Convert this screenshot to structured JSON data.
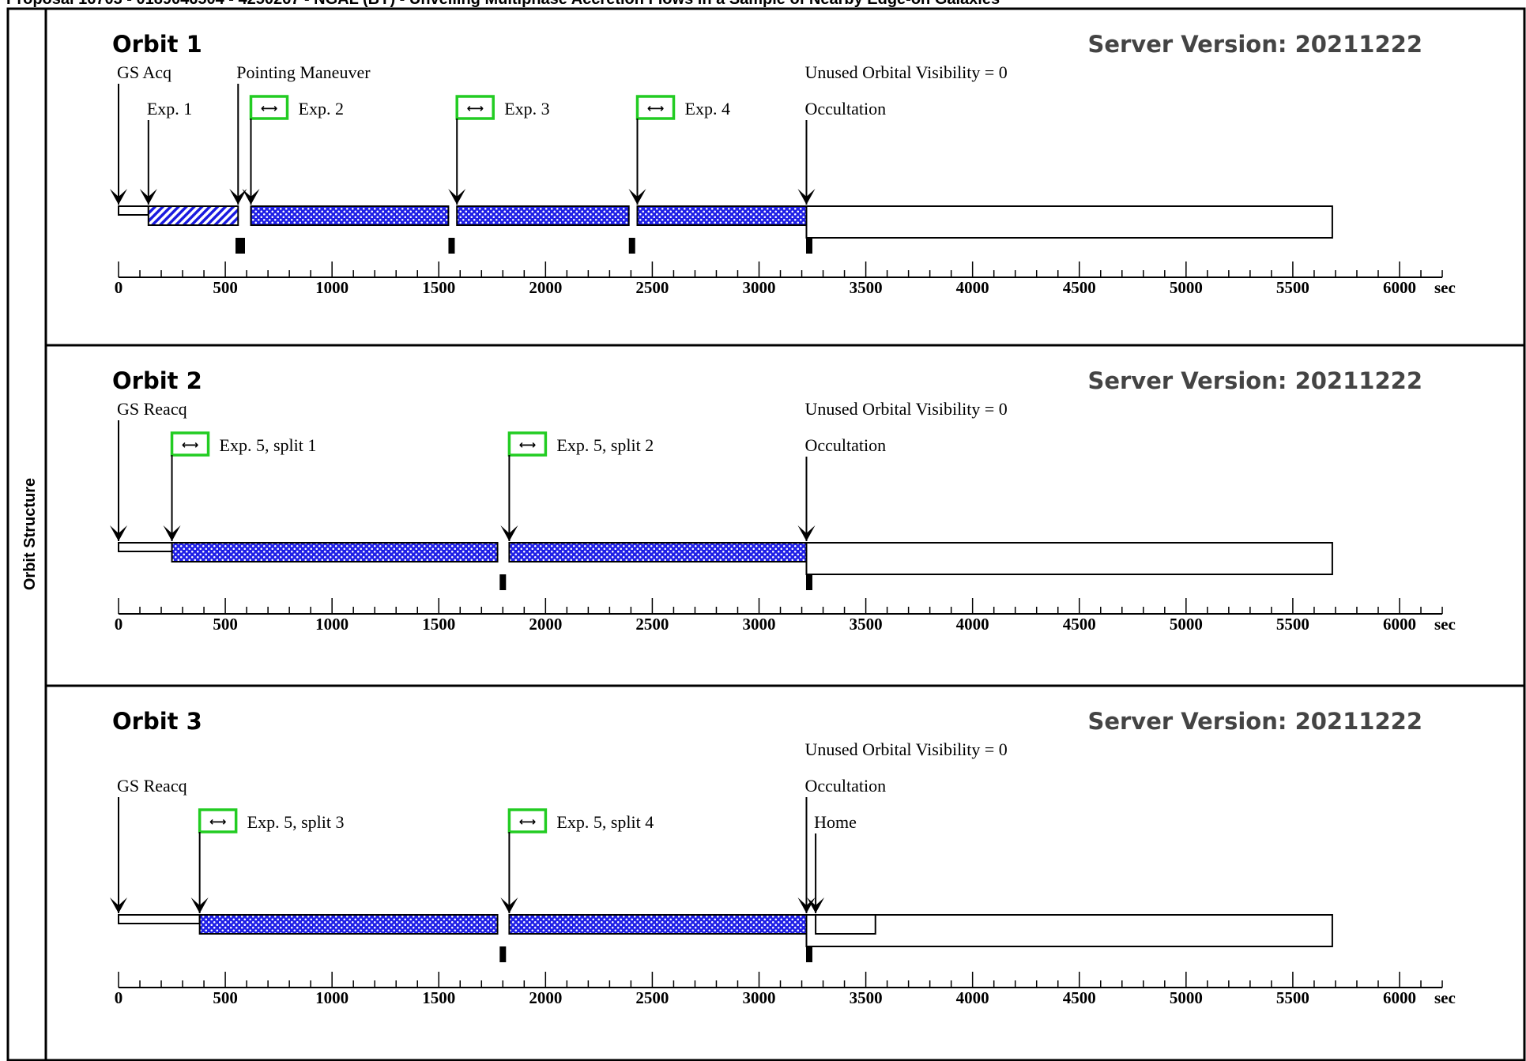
{
  "header": {
    "text": "Proposal 16703 - 0189046504 - 4250267 - NGAL (BY) - Unveiling Multiphase Accretion Flows in a Sample of Nearby Edge-on Galaxies"
  },
  "sidebar": {
    "label": "Orbit Structure"
  },
  "axis": {
    "ticks": [
      "0",
      "500",
      "1000",
      "1500",
      "2000",
      "2500",
      "3000",
      "3500",
      "4000",
      "4500",
      "5000",
      "5500",
      "6000"
    ],
    "unit": "sec",
    "minor_step": 100,
    "max": 6200
  },
  "orbits": [
    {
      "title": "Orbit 1",
      "server": "Server Version: 20211222",
      "labels": [
        {
          "text": "GS Acq",
          "t": 0,
          "row": 0,
          "arrow": true
        },
        {
          "text": "Pointing Maneuver",
          "t": 560,
          "row": 0,
          "arrow": true
        },
        {
          "text": "Unused Orbital Visibility = 0",
          "t": 3222,
          "row": 0,
          "arrow": false
        },
        {
          "text": "Exp. 1",
          "t": 140,
          "row": 1,
          "arrow": true,
          "icon": false
        },
        {
          "text": "Exp. 2",
          "t": 620,
          "row": 1,
          "arrow": true,
          "icon": true
        },
        {
          "text": "Exp. 3",
          "t": 1585,
          "row": 1,
          "arrow": true,
          "icon": true
        },
        {
          "text": "Exp. 4",
          "t": 2430,
          "row": 1,
          "arrow": true,
          "icon": true
        },
        {
          "text": "Occultation",
          "t": 3222,
          "row": 1,
          "arrow": true,
          "icon": false
        }
      ],
      "segments": [
        {
          "start": 0,
          "end": 140,
          "kind": "plain"
        },
        {
          "start": 140,
          "end": 560,
          "kind": "hatch"
        },
        {
          "start": 620,
          "end": 1545,
          "kind": "dots"
        },
        {
          "start": 1585,
          "end": 2390,
          "kind": "dots"
        },
        {
          "start": 2430,
          "end": 3222,
          "kind": "dots"
        },
        {
          "start": 3222,
          "end": 5685,
          "kind": "occ"
        }
      ],
      "marks": [
        {
          "t": 570,
          "wide": true
        },
        {
          "t": 1560,
          "wide": false
        },
        {
          "t": 2405,
          "wide": false
        },
        {
          "t": 3235,
          "wide": false
        }
      ]
    },
    {
      "title": "Orbit 2",
      "server": "Server Version: 20211222",
      "labels": [
        {
          "text": "GS Reacq",
          "t": 0,
          "row": 0,
          "arrow": true
        },
        {
          "text": "Unused Orbital Visibility = 0",
          "t": 3222,
          "row": 0,
          "arrow": false
        },
        {
          "text": "Exp. 5, split 1",
          "t": 250,
          "row": 1,
          "arrow": true,
          "icon": true
        },
        {
          "text": "Exp. 5, split 2",
          "t": 1830,
          "row": 1,
          "arrow": true,
          "icon": true
        },
        {
          "text": "Occultation",
          "t": 3222,
          "row": 1,
          "arrow": true,
          "icon": false
        }
      ],
      "segments": [
        {
          "start": 0,
          "end": 390,
          "kind": "plain"
        },
        {
          "start": 250,
          "end": 1775,
          "kind": "dots"
        },
        {
          "start": 1830,
          "end": 3222,
          "kind": "dots"
        },
        {
          "start": 3222,
          "end": 5685,
          "kind": "occ"
        }
      ],
      "marks": [
        {
          "t": 1800,
          "wide": false
        },
        {
          "t": 3235,
          "wide": false
        }
      ]
    },
    {
      "title": "Orbit 3",
      "server": "Server Version: 20211222",
      "labels": [
        {
          "text": "Unused Orbital Visibility = 0",
          "t": 3222,
          "row": 0,
          "arrow": false
        },
        {
          "text": "Occultation",
          "t": 3222,
          "row": 1,
          "arrow": true,
          "icon": false
        },
        {
          "text": "GS Reacq",
          "t": 0,
          "row": 1,
          "arrow": true,
          "icon": false
        },
        {
          "text": "Exp. 5, split 3",
          "t": 380,
          "row": 2,
          "arrow": true,
          "icon": true
        },
        {
          "text": "Exp. 5, split 4",
          "t": 1830,
          "row": 2,
          "arrow": true,
          "icon": true
        },
        {
          "text": "Home",
          "t": 3265,
          "row": 2,
          "arrow": true,
          "icon": false
        }
      ],
      "segments": [
        {
          "start": 0,
          "end": 380,
          "kind": "plain"
        },
        {
          "start": 380,
          "end": 1775,
          "kind": "dots"
        },
        {
          "start": 1830,
          "end": 3222,
          "kind": "dots"
        },
        {
          "start": 3222,
          "end": 5685,
          "kind": "occ"
        },
        {
          "start": 3265,
          "end": 3545,
          "kind": "home"
        }
      ],
      "marks": [
        {
          "t": 1800,
          "wide": false
        },
        {
          "t": 3235,
          "wide": false
        }
      ]
    }
  ]
}
